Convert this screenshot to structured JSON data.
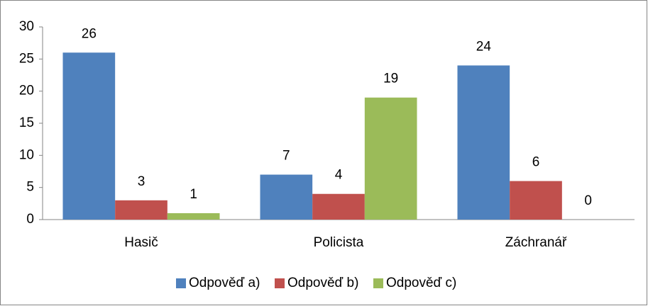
{
  "chart_data": {
    "type": "bar",
    "categories": [
      "Hasič",
      "Policista",
      "Záchranář"
    ],
    "series": [
      {
        "name": "Odpověď a)",
        "color": "#4f81bd",
        "values": [
          26,
          7,
          24
        ]
      },
      {
        "name": "Odpověď b)",
        "color": "#c0504d",
        "values": [
          3,
          4,
          6
        ]
      },
      {
        "name": "Odpověď c)",
        "color": "#9bbb59",
        "values": [
          1,
          19,
          0
        ]
      }
    ],
    "ylim": [
      0,
      30
    ],
    "yticks": [
      0,
      5,
      10,
      15,
      20,
      25,
      30
    ],
    "grid": false,
    "legend": "bottom"
  }
}
